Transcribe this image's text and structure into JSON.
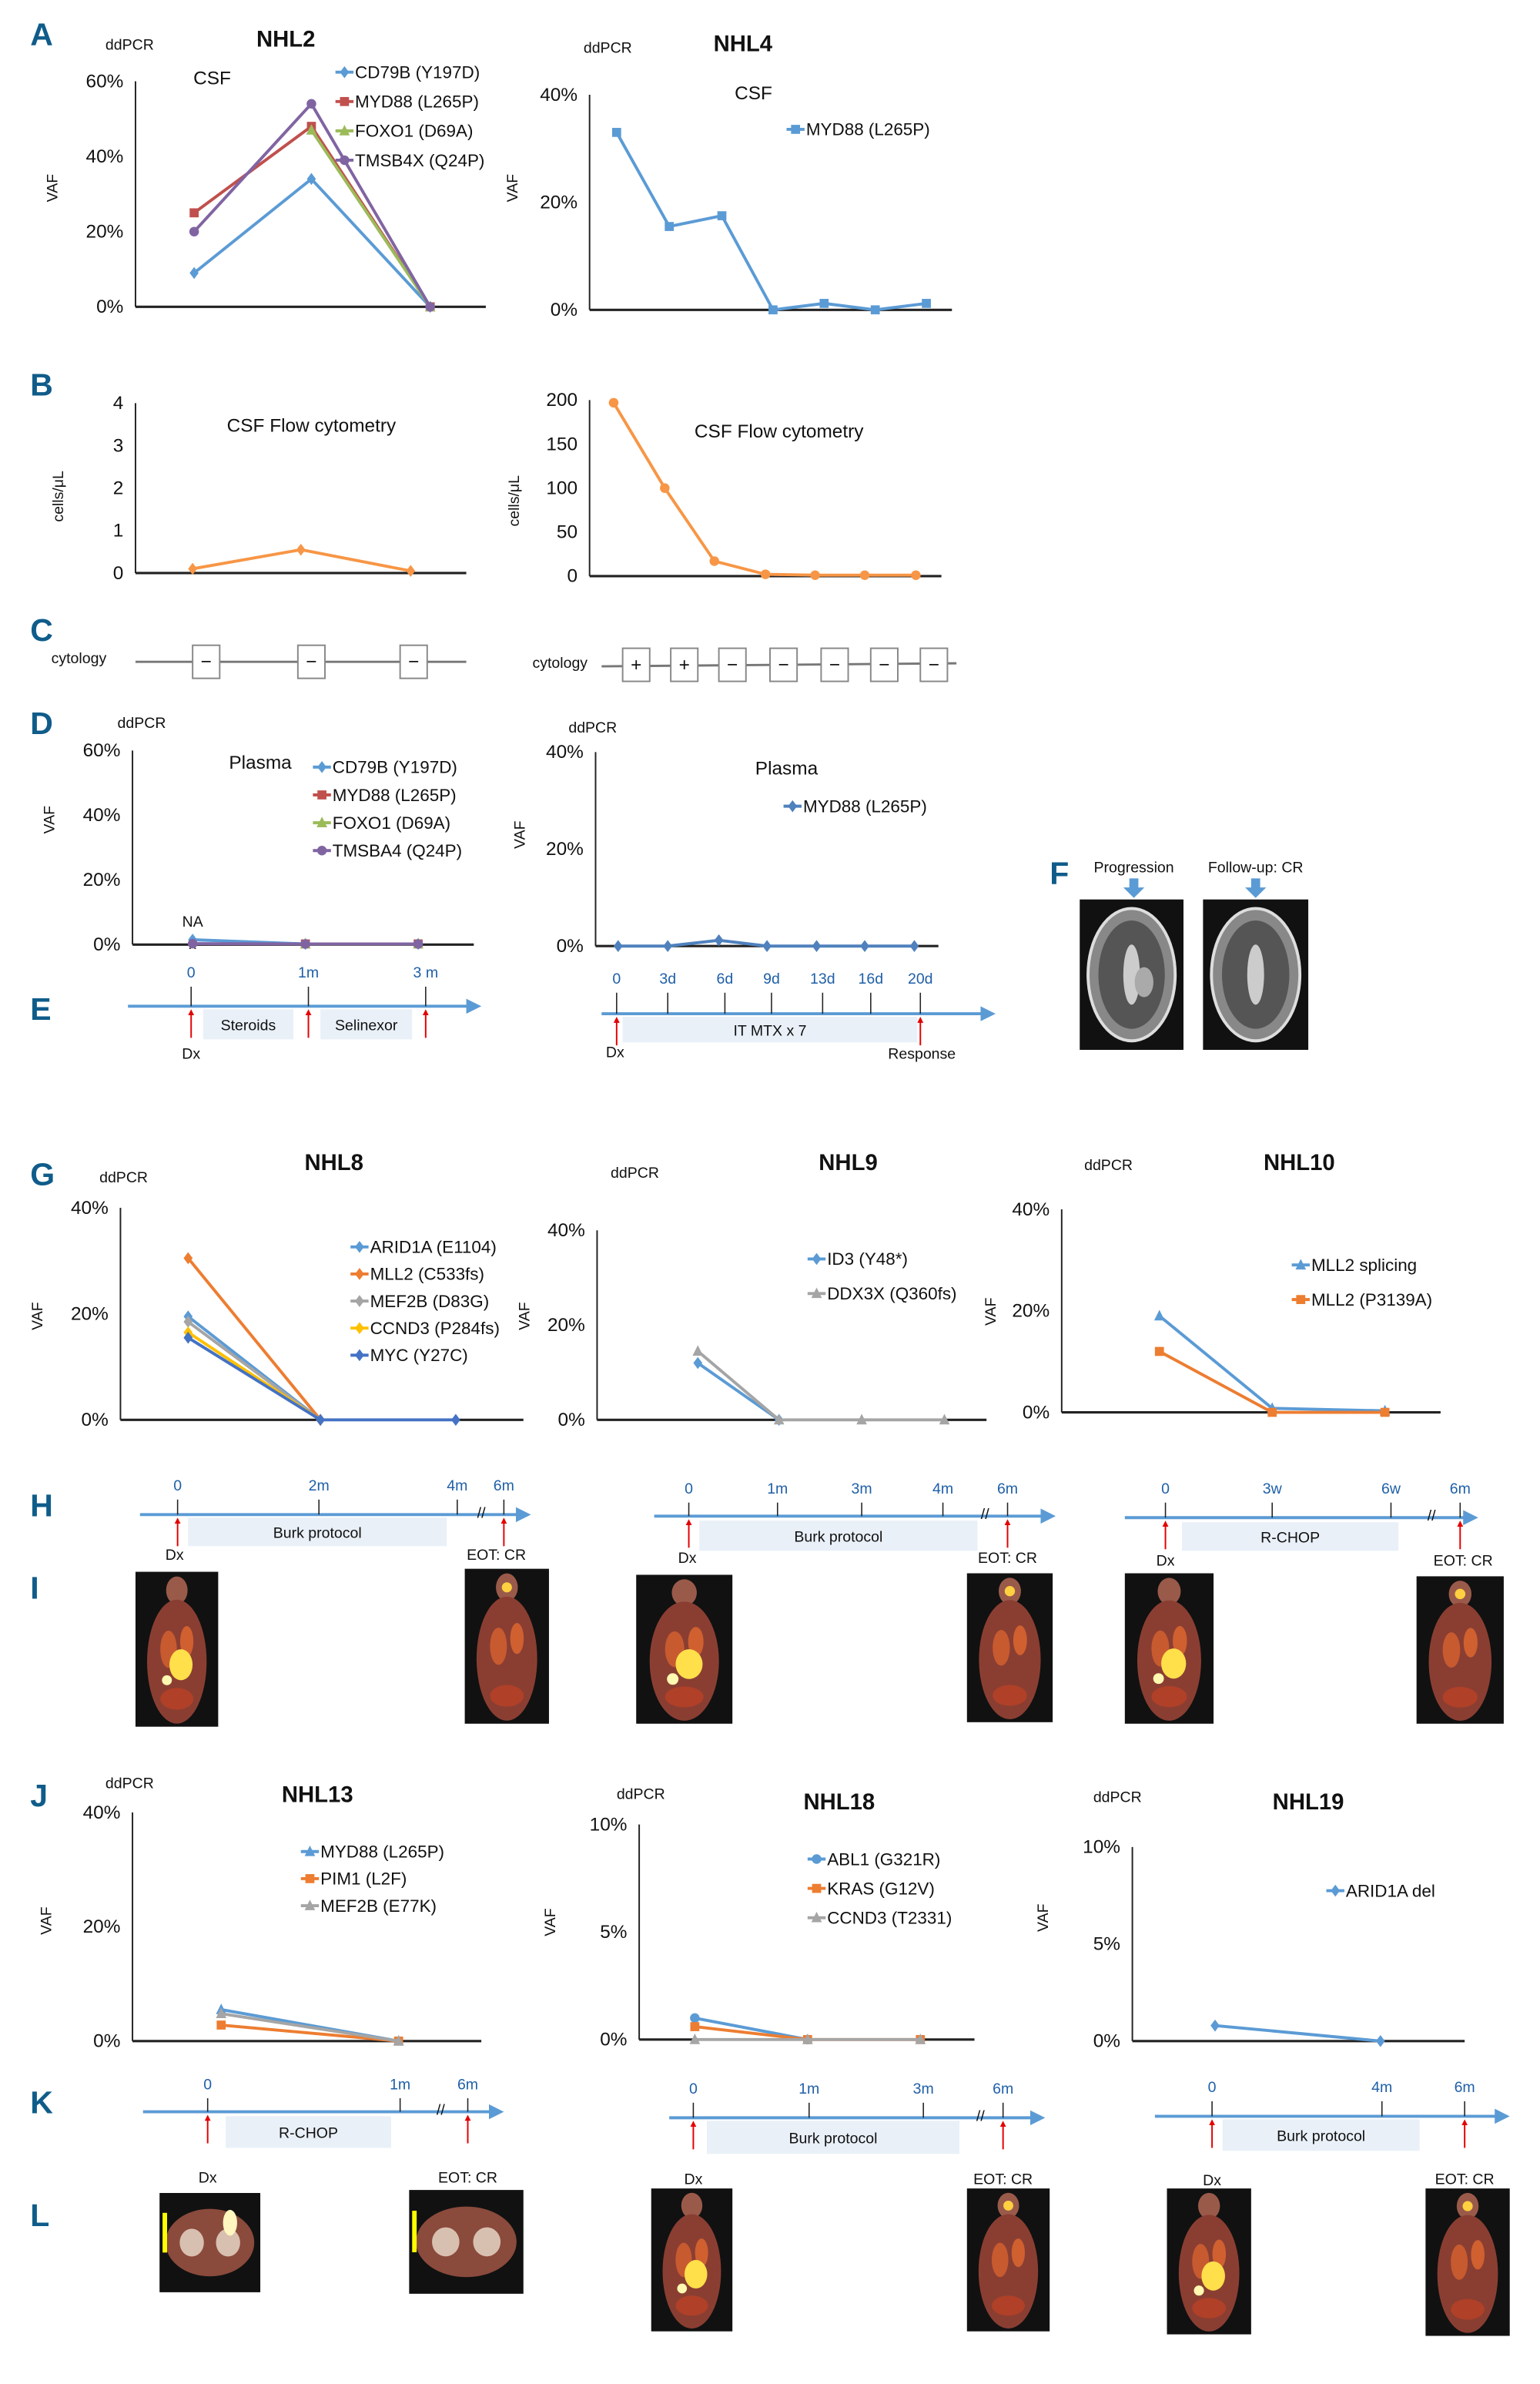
{
  "panel_labels": {
    "A": "A",
    "B": "B",
    "C": "C",
    "D": "D",
    "E": "E",
    "F": "F",
    "G": "G",
    "H": "H",
    "I": "I",
    "J": "J",
    "K": "K",
    "L": "L"
  },
  "chart_data": [
    {
      "type": "line",
      "title": "NHL2",
      "header": "ddPCR",
      "subtitle": "CSF",
      "ylabel": "VAF",
      "ylim": [
        0,
        60
      ],
      "yticks": [
        0,
        20,
        40,
        60
      ],
      "ytick_labels": [
        "0%",
        "20%",
        "40%",
        "60%"
      ],
      "x": [
        "0",
        "1m",
        "3m"
      ],
      "grid": false,
      "legend": "top-right",
      "series": [
        {
          "name": "CD79B (Y197D)",
          "color": "#5b9bd5",
          "marker": "diamond",
          "values": [
            9,
            34,
            0
          ]
        },
        {
          "name": "MYD88 (L265P)",
          "color": "#c0504d",
          "marker": "square",
          "values": [
            25,
            48,
            0
          ]
        },
        {
          "name": "FOXO1 (D69A)",
          "color": "#9bbb59",
          "marker": "triangle",
          "values": [
            null,
            47,
            0
          ]
        },
        {
          "name": "TMSB4X (Q24P)",
          "color": "#8064a2",
          "marker": "circle",
          "values": [
            20,
            54,
            0
          ]
        }
      ]
    },
    {
      "type": "line",
      "title": "NHL4",
      "header": "ddPCR",
      "subtitle": "CSF",
      "ylabel": "VAF",
      "ylim": [
        0,
        40
      ],
      "yticks": [
        0,
        20,
        40
      ],
      "ytick_labels": [
        "0%",
        "20%",
        "40%"
      ],
      "x": [
        "0",
        "3d",
        "6d",
        "9d",
        "13d",
        "16d",
        "20d"
      ],
      "grid": false,
      "legend": "top-right",
      "series": [
        {
          "name": "MYD88 (L265P)",
          "color": "#5b9bd5",
          "marker": "square",
          "values": [
            33,
            15.5,
            17.5,
            0,
            1.2,
            0,
            1.2
          ]
        }
      ]
    },
    {
      "type": "line",
      "title": "",
      "subtitle": "CSF Flow cytometry",
      "ylabel": "cells/μL",
      "ylim": [
        0,
        4
      ],
      "yticks": [
        0,
        1,
        2,
        3,
        4
      ],
      "ytick_labels": [
        "0",
        "1",
        "2",
        "3",
        "4"
      ],
      "x": [
        "0",
        "1m",
        "3m"
      ],
      "grid": false,
      "series": [
        {
          "color": "#f79646",
          "marker": "diamond",
          "values": [
            0.1,
            0.55,
            0.05
          ]
        }
      ]
    },
    {
      "type": "line",
      "title": "",
      "subtitle": "CSF Flow cytometry",
      "ylabel": "cells/μL",
      "ylim": [
        0,
        200
      ],
      "yticks": [
        0,
        50,
        100,
        150,
        200
      ],
      "ytick_labels": [
        "0",
        "50",
        "100",
        "150",
        "200"
      ],
      "x": [
        "0",
        "3d",
        "6d",
        "9d",
        "13d",
        "16d",
        "20d"
      ],
      "grid": false,
      "series": [
        {
          "color": "#f79646",
          "marker": "circle",
          "values": [
            197,
            100,
            17,
            2,
            1,
            1,
            1
          ]
        }
      ]
    },
    {
      "type": "line",
      "title": "",
      "header": "ddPCR",
      "subtitle": "Plasma",
      "ylabel": "VAF",
      "ylim": [
        0,
        60
      ],
      "yticks": [
        0,
        20,
        40,
        60
      ],
      "ytick_labels": [
        "0%",
        "20%",
        "40%",
        "60%"
      ],
      "x": [
        "0",
        "1m",
        "3m"
      ],
      "grid": false,
      "legend": "top-right",
      "na_label": "NA",
      "na_marker": "x",
      "series": [
        {
          "name": "CD79B (Y197D)",
          "color": "#5b9bd5",
          "marker": "diamond",
          "values": [
            1.5,
            0.2,
            0.2
          ]
        },
        {
          "name": "MYD88 (L265P)",
          "color": "#c0504d",
          "marker": "square",
          "values": [
            null,
            0.2,
            0.2
          ]
        },
        {
          "name": "FOXO1 (D69A)",
          "color": "#9bbb59",
          "marker": "triangle",
          "values": [
            null,
            0.2,
            0.2
          ]
        },
        {
          "name": "TMSBA4 (Q24P)",
          "color": "#8064a2",
          "marker": "circle",
          "values": [
            0.3,
            0.2,
            0.2
          ]
        }
      ]
    },
    {
      "type": "line",
      "title": "",
      "header": "ddPCR",
      "subtitle": "Plasma",
      "ylabel": "VAF",
      "ylim": [
        0,
        40
      ],
      "yticks": [
        0,
        20,
        40
      ],
      "ytick_labels": [
        "0%",
        "20%",
        "40%"
      ],
      "x": [
        "0",
        "3d",
        "6d",
        "9d",
        "13d",
        "16d",
        "20d"
      ],
      "grid": false,
      "legend": "top-right",
      "series": [
        {
          "name": "MYD88 (L265P)",
          "color": "#4f81bd",
          "marker": "diamond",
          "values": [
            0,
            0,
            1.2,
            0,
            0,
            0,
            0
          ]
        }
      ]
    },
    {
      "type": "line",
      "title": "NHL8",
      "header": "ddPCR",
      "ylabel": "VAF",
      "ylim": [
        0,
        40
      ],
      "yticks": [
        0,
        20,
        40
      ],
      "ytick_labels": [
        "0%",
        "20%",
        "40%"
      ],
      "x": [
        "0",
        "2m",
        "4m"
      ],
      "grid": false,
      "legend": "top-right",
      "series": [
        {
          "name": "ARID1A (E1104)",
          "color": "#5b9bd5",
          "marker": "diamond",
          "values": [
            19.5,
            0,
            null
          ]
        },
        {
          "name": "MLL2 (C533fs)",
          "color": "#ed7d31",
          "marker": "diamond",
          "values": [
            30.5,
            0,
            null
          ]
        },
        {
          "name": "MEF2B (D83G)",
          "color": "#a5a5a5",
          "marker": "diamond",
          "values": [
            18.5,
            0,
            null
          ]
        },
        {
          "name": "CCND3 (P284fs)",
          "color": "#ffc000",
          "marker": "diamond",
          "values": [
            16.5,
            0,
            null
          ]
        },
        {
          "name": "MYC (Y27C)",
          "color": "#4472c4",
          "marker": "diamond",
          "values": [
            15.5,
            0,
            0
          ]
        }
      ]
    },
    {
      "type": "line",
      "title": "NHL9",
      "header": "ddPCR",
      "ylabel": "VAF",
      "ylim": [
        0,
        40
      ],
      "yticks": [
        0,
        20,
        40
      ],
      "ytick_labels": [
        "0%",
        "20%",
        "40%"
      ],
      "x": [
        "0",
        "1m",
        "3m",
        "4m"
      ],
      "grid": false,
      "legend": "top-right",
      "series": [
        {
          "name": "ID3 (Y48*)",
          "color": "#5b9bd5",
          "marker": "diamond",
          "values": [
            12,
            0,
            null,
            null
          ]
        },
        {
          "name": "DDX3X (Q360fs)",
          "color": "#a5a5a5",
          "marker": "triangle",
          "values": [
            14.5,
            0,
            0,
            0
          ]
        }
      ]
    },
    {
      "type": "line",
      "title": "NHL10",
      "header": "ddPCR",
      "ylabel": "VAF",
      "ylim": [
        0,
        40
      ],
      "yticks": [
        0,
        20,
        40
      ],
      "ytick_labels": [
        "0%",
        "20%",
        "40%"
      ],
      "x": [
        "0",
        "3w",
        "6w"
      ],
      "grid": false,
      "legend": "top-right",
      "series": [
        {
          "name": "MLL2 splicing",
          "color": "#5b9bd5",
          "marker": "triangle",
          "values": [
            19,
            0.8,
            0.3
          ]
        },
        {
          "name": "MLL2 (P3139A)",
          "color": "#ed7d31",
          "marker": "square",
          "values": [
            12,
            0,
            0
          ]
        }
      ]
    },
    {
      "type": "line",
      "title": "NHL13",
      "header": "ddPCR",
      "ylabel": "VAF",
      "ylim": [
        0,
        40
      ],
      "yticks": [
        0,
        20,
        40
      ],
      "ytick_labels": [
        "0%",
        "20%",
        "40%"
      ],
      "x": [
        "0",
        "1m"
      ],
      "grid": false,
      "legend": "top-right",
      "series": [
        {
          "name": "MYD88 (L265P)",
          "color": "#5b9bd5",
          "marker": "triangle",
          "values": [
            5.5,
            0
          ]
        },
        {
          "name": "PIM1 (L2F)",
          "color": "#ed7d31",
          "marker": "square",
          "values": [
            2.8,
            0
          ]
        },
        {
          "name": "MEF2B (E77K)",
          "color": "#a5a5a5",
          "marker": "triangle",
          "values": [
            4.8,
            0
          ]
        }
      ]
    },
    {
      "type": "line",
      "title": "NHL18",
      "header": "ddPCR",
      "ylabel": "VAF",
      "ylim": [
        0,
        10
      ],
      "yticks": [
        0,
        5,
        10
      ],
      "ytick_labels": [
        "0%",
        "5%",
        "10%"
      ],
      "x": [
        "0",
        "1m",
        "3m"
      ],
      "grid": false,
      "legend": "top-right",
      "series": [
        {
          "name": "ABL1 (G321R)",
          "color": "#5b9bd5",
          "marker": "circle",
          "values": [
            1,
            0,
            null
          ]
        },
        {
          "name": "KRAS (G12V)",
          "color": "#ed7d31",
          "marker": "square",
          "values": [
            0.6,
            0,
            0
          ]
        },
        {
          "name": "CCND3 (T2331)",
          "color": "#a5a5a5",
          "marker": "triangle",
          "values": [
            0,
            0,
            0
          ]
        }
      ]
    },
    {
      "type": "line",
      "title": "NHL19",
      "header": "ddPCR",
      "ylabel": "VAF",
      "ylim": [
        0,
        10
      ],
      "yticks": [
        0,
        5,
        10
      ],
      "ytick_labels": [
        "0%",
        "5%",
        "10%"
      ],
      "x": [
        "0",
        "4m"
      ],
      "grid": false,
      "legend": "top-right",
      "series": [
        {
          "name": "ARID1A del",
          "color": "#5b9bd5",
          "marker": "diamond",
          "values": [
            0.8,
            0
          ]
        }
      ]
    }
  ],
  "cytology": {
    "label": "cytology",
    "left": [
      "−",
      "−",
      "−"
    ],
    "right": [
      "+",
      "+",
      "−",
      "−",
      "−",
      "−",
      "−"
    ]
  },
  "timelines": [
    {
      "ticks": [
        "0",
        "1m",
        "3 m"
      ],
      "boxes": [
        "Steroids",
        "Selinexor"
      ],
      "start": "Dx",
      "end": ""
    },
    {
      "ticks": [
        "0",
        "3d",
        "6d",
        "9d",
        "13d",
        "16d",
        "20d"
      ],
      "boxes": [
        "IT MTX x 7"
      ],
      "start": "Dx",
      "end": "Response"
    },
    {
      "ticks": [
        "0",
        "2m",
        "4m",
        "6m"
      ],
      "boxes": [
        "Burk protocol"
      ],
      "start": "Dx",
      "end": "EOT: CR",
      "break": "//"
    },
    {
      "ticks": [
        "0",
        "1m",
        "3m",
        "4m",
        "6m"
      ],
      "boxes": [
        "Burk protocol"
      ],
      "start": "Dx",
      "end": "EOT: CR",
      "break": "//"
    },
    {
      "ticks": [
        "0",
        "3w",
        "6w",
        "6m"
      ],
      "boxes": [
        "R-CHOP"
      ],
      "start": "Dx",
      "end": "EOT: CR",
      "break": "//"
    },
    {
      "ticks": [
        "0",
        "1m",
        "6m"
      ],
      "boxes": [
        "R-CHOP"
      ],
      "start": "Dx",
      "end": "EOT: CR",
      "break": "//"
    },
    {
      "ticks": [
        "0",
        "1m",
        "3m",
        "6m"
      ],
      "boxes": [
        "Burk protocol"
      ],
      "start": "Dx",
      "end": "EOT: CR",
      "break": "//"
    },
    {
      "ticks": [
        "0",
        "4m",
        "6m"
      ],
      "boxes": [
        "Burk protocol"
      ],
      "start": "Dx",
      "end": "EOT: CR"
    }
  ],
  "mri": {
    "progression": "Progression",
    "followup": "Follow-up: CR",
    "arrow_color": "#5b9bd5"
  },
  "colors": {
    "panel_letter": "#0f5c8a",
    "timeline": "#5b9bd5",
    "timeline_box": "#e9f0f8",
    "arrow": "#e30000",
    "tick_label": "#1f5fa8"
  }
}
